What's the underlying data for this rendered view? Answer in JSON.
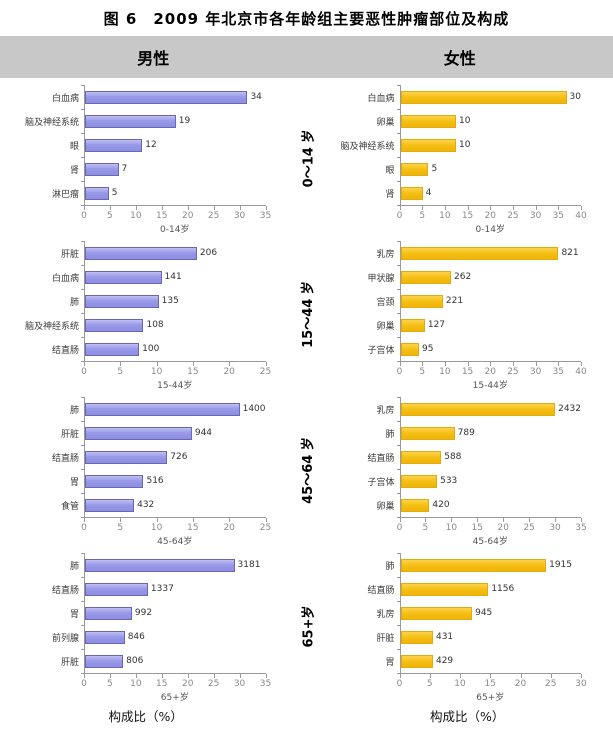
{
  "figure": {
    "title": "图 6　2009 年北京市各年龄组主要恶性肿瘤部位及构成",
    "column_headers": {
      "male": "男性",
      "female": "女性"
    },
    "x_caption": "构成比（%）"
  },
  "age_groups": [
    "0～14 岁",
    "15～44 岁",
    "45～64 岁",
    "65+岁"
  ],
  "colors": {
    "male": {
      "fill": "#9898e8",
      "border": "#6767b6"
    },
    "female": {
      "fill": "#f5bd10",
      "border": "#e2ab0e"
    },
    "header_band": "#c8c8c8",
    "axis_line": "#9a9a9a"
  },
  "chart_data": [
    {
      "type": "bar",
      "orientation": "horizontal",
      "gender": "男性",
      "color": "male",
      "age_group": "0～14 岁",
      "axis_label": "0-14岁",
      "categories": [
        "白血病",
        "脑及神经系统",
        "眼",
        "肾",
        "淋巴瘤"
      ],
      "counts": [
        34,
        19,
        12,
        7,
        5
      ],
      "bar_percent": [
        31.5,
        17.6,
        11.1,
        6.5,
        4.6
      ],
      "xlabel": "构成比（%）",
      "xlim": [
        0,
        35
      ],
      "x_ticks": [
        0,
        5,
        10,
        15,
        20,
        25,
        30,
        35
      ],
      "grid": false
    },
    {
      "type": "bar",
      "orientation": "horizontal",
      "gender": "女性",
      "color": "female",
      "age_group": "0～14 岁",
      "axis_label": "0-14岁",
      "categories": [
        "白血病",
        "卵巢",
        "脑及神经系统",
        "眼",
        "肾"
      ],
      "counts": [
        30,
        10,
        10,
        5,
        4
      ],
      "bar_percent": [
        37.0,
        12.3,
        12.3,
        6.2,
        4.9
      ],
      "xlabel": "构成比（%）",
      "xlim": [
        0,
        40
      ],
      "x_ticks": [
        0,
        5,
        10,
        15,
        20,
        25,
        30,
        35,
        40
      ],
      "grid": false
    },
    {
      "type": "bar",
      "orientation": "horizontal",
      "gender": "男性",
      "color": "male",
      "age_group": "15～44 岁",
      "axis_label": "15-44岁",
      "categories": [
        "肝脏",
        "白血病",
        "肺",
        "脑及神经系统",
        "结直肠"
      ],
      "counts": [
        206,
        141,
        135,
        108,
        100
      ],
      "bar_percent": [
        15.5,
        10.6,
        10.2,
        8.1,
        7.5
      ],
      "xlabel": "构成比（%）",
      "xlim": [
        0,
        25
      ],
      "x_ticks": [
        0,
        5,
        10,
        15,
        20,
        25
      ],
      "grid": false
    },
    {
      "type": "bar",
      "orientation": "horizontal",
      "gender": "女性",
      "color": "female",
      "age_group": "15～44 岁",
      "axis_label": "15-44岁",
      "categories": [
        "乳房",
        "甲状腺",
        "宫颈",
        "卵巢",
        "子宫体"
      ],
      "counts": [
        821,
        262,
        221,
        127,
        95
      ],
      "bar_percent": [
        35.0,
        11.2,
        9.4,
        5.4,
        4.1
      ],
      "xlabel": "构成比（%）",
      "xlim": [
        0,
        40
      ],
      "x_ticks": [
        0,
        5,
        10,
        15,
        20,
        25,
        30,
        35,
        40
      ],
      "grid": false
    },
    {
      "type": "bar",
      "orientation": "horizontal",
      "gender": "男性",
      "color": "male",
      "age_group": "45～64 岁",
      "axis_label": "45-64岁",
      "categories": [
        "肺",
        "肝脏",
        "结直肠",
        "胃",
        "食管"
      ],
      "counts": [
        1400,
        944,
        726,
        516,
        432
      ],
      "bar_percent": [
        22.0,
        14.8,
        11.4,
        8.1,
        6.8
      ],
      "xlabel": "构成比（%）",
      "xlim": [
        0,
        25
      ],
      "x_ticks": [
        0,
        5,
        10,
        15,
        20,
        25
      ],
      "grid": false
    },
    {
      "type": "bar",
      "orientation": "horizontal",
      "gender": "女性",
      "color": "female",
      "age_group": "45～64 岁",
      "axis_label": "45-64岁",
      "categories": [
        "乳房",
        "肺",
        "结直肠",
        "子宫体",
        "卵巢"
      ],
      "counts": [
        2432,
        789,
        588,
        533,
        420
      ],
      "bar_percent": [
        32.5,
        10.5,
        7.9,
        7.1,
        5.6
      ],
      "xlabel": "构成比（%）",
      "xlim": [
        0,
        35
      ],
      "x_ticks": [
        0,
        5,
        10,
        15,
        20,
        25,
        30,
        35
      ],
      "grid": false
    },
    {
      "type": "bar",
      "orientation": "horizontal",
      "gender": "男性",
      "color": "male",
      "age_group": "65+岁",
      "axis_label": "65+岁",
      "categories": [
        "肺",
        "结直肠",
        "胃",
        "前列腺",
        "肝脏"
      ],
      "counts": [
        3181,
        1337,
        992,
        846,
        806
      ],
      "bar_percent": [
        29.0,
        12.2,
        9.1,
        7.7,
        7.4
      ],
      "xlabel": "构成比（%）",
      "xlim": [
        0,
        35
      ],
      "x_ticks": [
        0,
        5,
        10,
        15,
        20,
        25,
        30,
        35
      ],
      "grid": false
    },
    {
      "type": "bar",
      "orientation": "horizontal",
      "gender": "女性",
      "color": "female",
      "age_group": "65+岁",
      "axis_label": "65+岁",
      "categories": [
        "肺",
        "结直肠",
        "乳房",
        "肝脏",
        "胃"
      ],
      "counts": [
        1915,
        1156,
        945,
        431,
        429
      ],
      "bar_percent": [
        24.2,
        14.6,
        11.9,
        5.4,
        5.4
      ],
      "xlabel": "构成比（%）",
      "xlim": [
        0,
        30
      ],
      "x_ticks": [
        0,
        5,
        10,
        15,
        20,
        25,
        30
      ],
      "grid": false
    }
  ]
}
